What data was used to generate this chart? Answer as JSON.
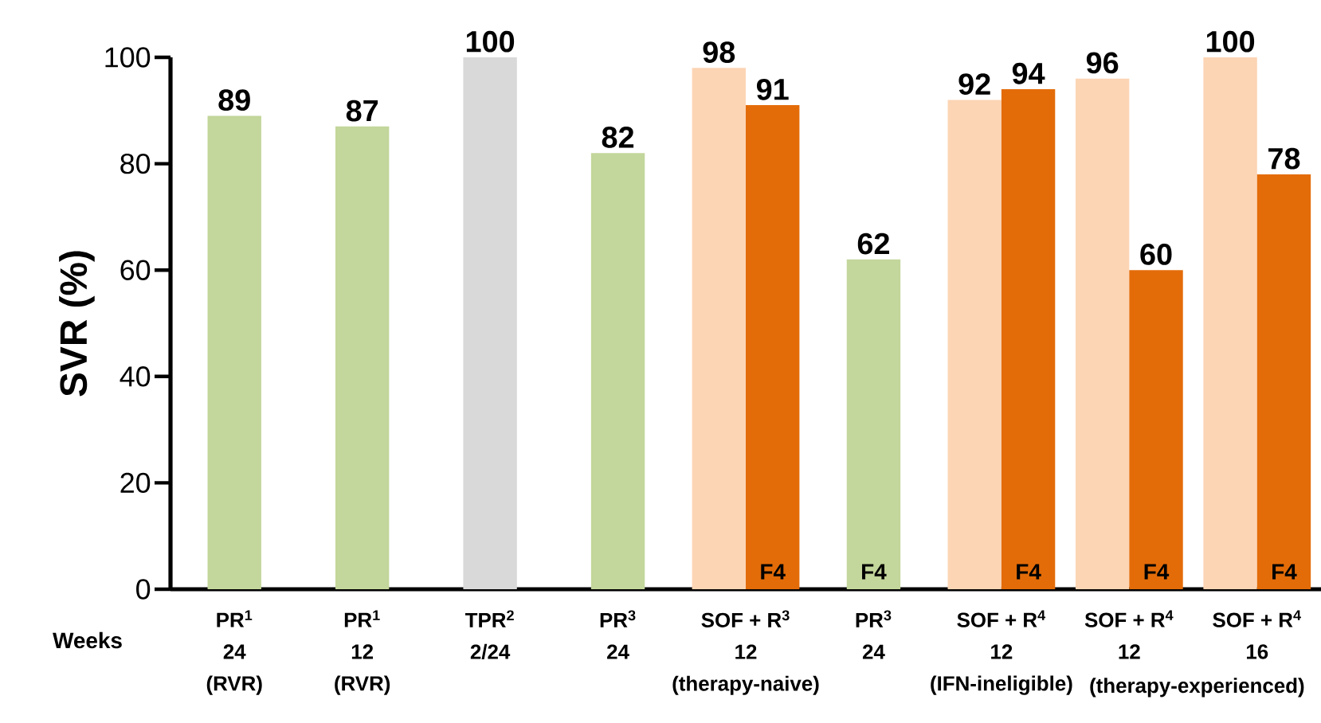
{
  "chart_data": {
    "type": "bar",
    "ylabel": "SVR (%)",
    "categories": [
      "PR$^{1}$\n24\n(RVR)",
      "PR$^{1}$\n12\n(RVR)",
      "TPR$^{2}$\n2/24",
      "PR$^{3}$\n24",
      "SOF + R$^{3}$\n12\n(therapy-naive)",
      "PR$^{3}$\n24",
      "SOF + R$^{4}$\n12\n(IFN-ineligible)",
      "SOF + R$^{4}$\n12",
      "SOF + R$^{4}$\n16"
    ],
    "series": [
      {
        "values": [
          89,
          87,
          100,
          82,
          98,
          null,
          92,
          96,
          100
        ],
        "colors": [
          "#c3d69b",
          "#c3d69b",
          "#d9d9d9",
          "#c3d69b",
          "#fcd5b5",
          null,
          "#fcd5b5",
          "#fcd5b5",
          "#fcd5b5"
        ]
      },
      {
        "name": "F4",
        "values": [
          null,
          null,
          null,
          null,
          91,
          62,
          94,
          60,
          78
        ],
        "colors": [
          null,
          null,
          null,
          null,
          "#e36c09",
          "#c3d69b",
          "#e36c09",
          "#e36c09",
          "#e36c09"
        ]
      }
    ],
    "ylim": [
      0,
      100
    ],
    "yticks": [
      0,
      20,
      40,
      60,
      80,
      100
    ],
    "data_labels": true,
    "annotations": [
      "Weeks",
      "(therapy-experienced)"
    ]
  }
}
